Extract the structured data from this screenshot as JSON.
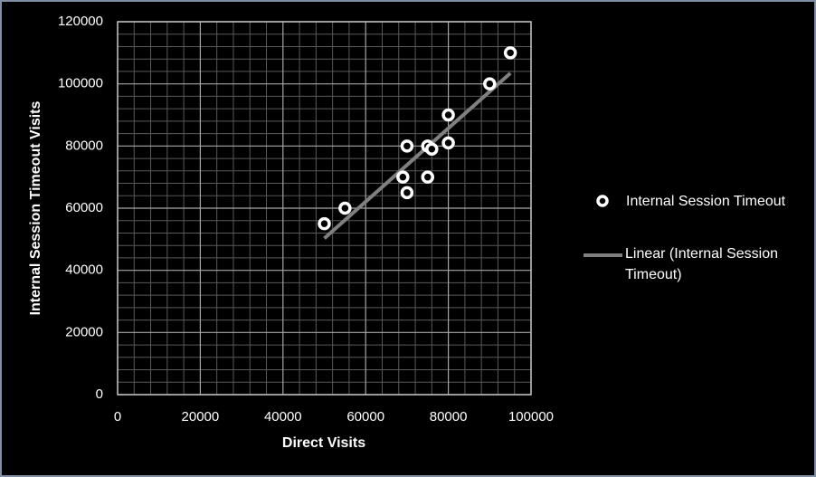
{
  "chart_data": {
    "type": "scatter",
    "xlabel": "Direct Visits",
    "ylabel": "Internal Session Timeout Visits",
    "series": [
      {
        "name": "Internal Session Timeout",
        "color": "#ffffff",
        "x": [
          50000,
          55000,
          69000,
          70000,
          70000,
          75000,
          76000,
          75000,
          80000,
          80000,
          90000,
          95000
        ],
        "values": [
          55000,
          60000,
          70000,
          65000,
          80000,
          80000,
          79000,
          70000,
          81000,
          90000,
          100000,
          110000
        ]
      }
    ],
    "trendline": {
      "name": "Linear (Internal Session Timeout)",
      "color": "#808080"
    },
    "xlim": [
      0,
      100000
    ],
    "xticks": [
      0,
      20000,
      40000,
      60000,
      80000,
      100000
    ],
    "ylim": [
      0,
      120000
    ],
    "yticks": [
      0,
      20000,
      40000,
      60000,
      80000,
      100000,
      120000
    ],
    "grid": true,
    "legend": "right"
  }
}
